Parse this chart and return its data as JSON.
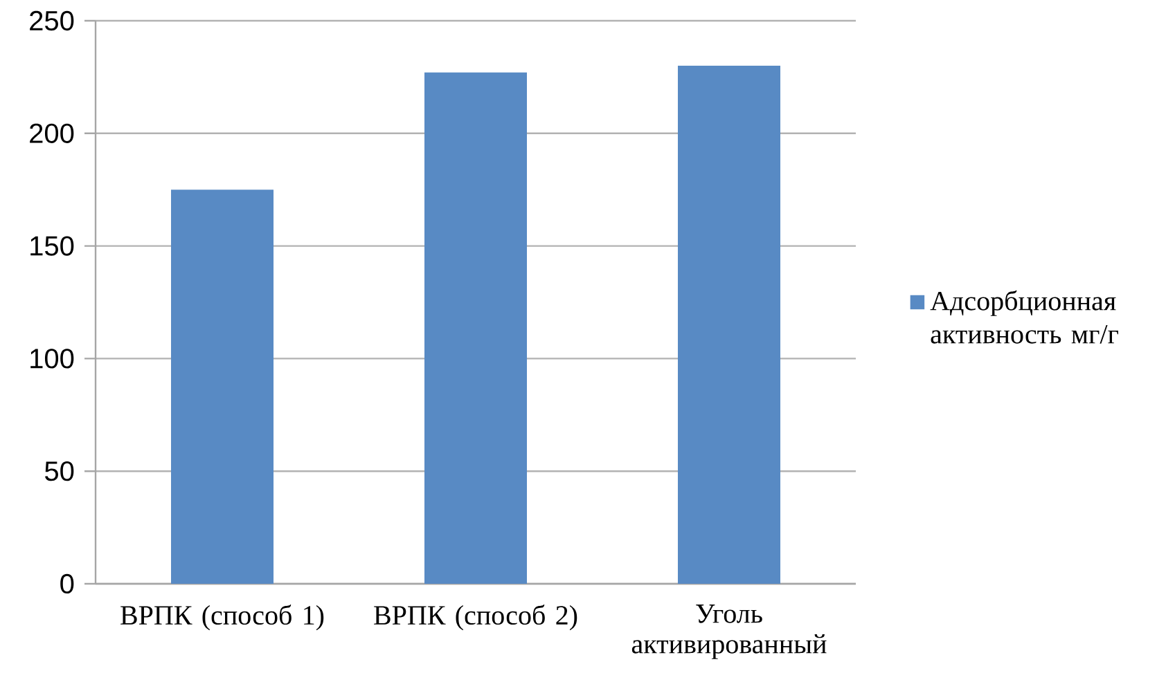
{
  "chart_data": {
    "type": "bar",
    "categories": [
      "ВРПК (способ 1)",
      "ВРПК (способ 2)",
      "Уголь активированный"
    ],
    "series": [
      {
        "name": "Адсорбционная активность мг/г",
        "color": "#588ac4",
        "values": [
          175,
          227,
          230
        ]
      }
    ],
    "ylim": [
      0,
      250
    ],
    "yticks": [
      0,
      50,
      100,
      150,
      200,
      250
    ],
    "grid": "y",
    "legend": "right"
  }
}
